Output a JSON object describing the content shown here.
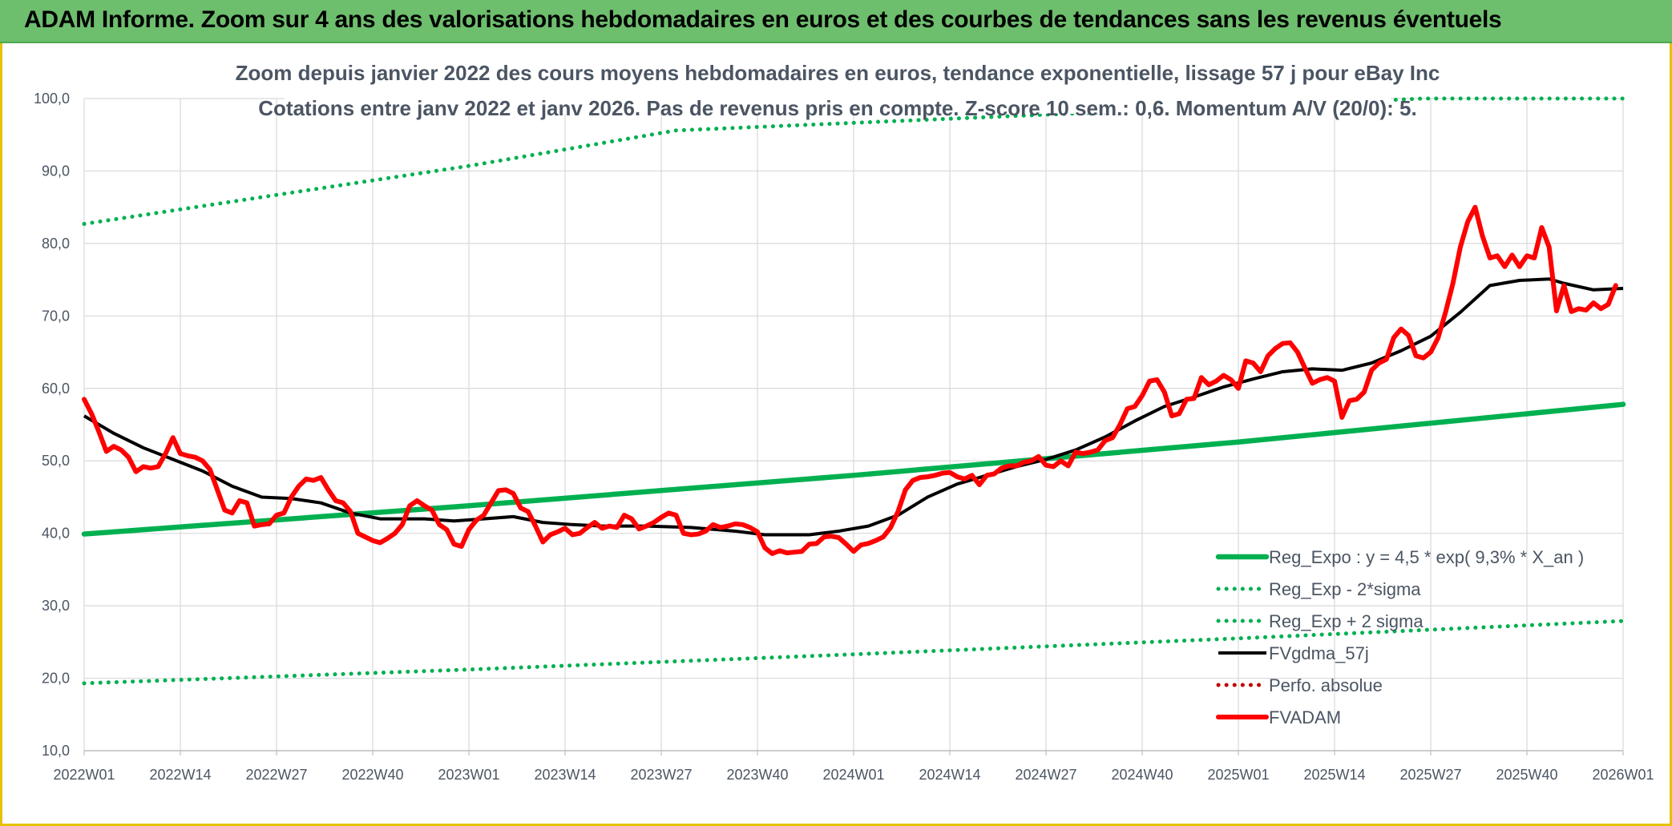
{
  "banner": {
    "title": "ADAM Informe. Zoom sur 4 ans des valorisations hebdomadaires en euros et des courbes de tendances sans les revenus éventuels"
  },
  "colors": {
    "banner_bg": "#6dbe6d",
    "reg_expo": "#00b050",
    "fvgdma": "#000000",
    "fvadam": "#ff0000",
    "perfo": "#c00000",
    "grid": "#d9d9d9",
    "text": "#4b5563"
  },
  "chart_data": {
    "type": "line",
    "title": "Zoom depuis janvier 2022 des cours moyens hebdomadaires en euros, tendance exponentielle, lissage 57 j pour eBay Inc",
    "subtitle": "Cotations entre janv 2022 et janv 2026. Pas de revenus pris en compte. Z-score 10 sem.: 0,6. Momentum A/V (20/0): 5.",
    "xlabel": "",
    "ylabel": "",
    "ylim": [
      10,
      100
    ],
    "yticks": [
      "10,0",
      "20,0",
      "30,0",
      "40,0",
      "50,0",
      "60,0",
      "70,0",
      "80,0",
      "90,0",
      "100,0"
    ],
    "xlim": [
      0,
      208
    ],
    "xticks": [
      {
        "label": "2022W01",
        "x": 0
      },
      {
        "label": "2022W14",
        "x": 13
      },
      {
        "label": "2022W27",
        "x": 26
      },
      {
        "label": "2022W40",
        "x": 39
      },
      {
        "label": "2023W01",
        "x": 52
      },
      {
        "label": "2023W14",
        "x": 65
      },
      {
        "label": "2023W27",
        "x": 78
      },
      {
        "label": "2023W40",
        "x": 91
      },
      {
        "label": "2024W01",
        "x": 104
      },
      {
        "label": "2024W14",
        "x": 117
      },
      {
        "label": "2024W27",
        "x": 130
      },
      {
        "label": "2024W40",
        "x": 143
      },
      {
        "label": "2025W01",
        "x": 156
      },
      {
        "label": "2025W14",
        "x": 169
      },
      {
        "label": "2025W27",
        "x": 182
      },
      {
        "label": "2025W40",
        "x": 195
      },
      {
        "label": "2026W01",
        "x": 208
      }
    ],
    "grid": true,
    "legend_position": "bottom-right",
    "series": [
      {
        "name": "Reg_Expo : y = 4,5 * exp( 9,3% *  X_an )",
        "style": "solid-thick",
        "color": "#00b050",
        "points": [
          [
            0,
            39.9
          ],
          [
            52,
            43.8
          ],
          [
            104,
            48.0
          ],
          [
            156,
            52.6
          ],
          [
            208,
            57.8
          ]
        ]
      },
      {
        "name": "Reg_Exp - 2*sigma",
        "style": "dotted",
        "color": "#00b050",
        "points": [
          [
            0,
            19.3
          ],
          [
            52,
            21.2
          ],
          [
            104,
            23.3
          ],
          [
            156,
            25.5
          ],
          [
            208,
            27.9
          ]
        ]
      },
      {
        "name": "Reg_Exp + 2 sigma",
        "style": "dotted",
        "color": "#00b050",
        "points": [
          [
            0,
            82.7
          ],
          [
            26,
            86.7
          ],
          [
            52,
            90.7
          ],
          [
            80,
            95.6
          ],
          [
            181,
            100
          ],
          [
            208,
            100
          ]
        ]
      },
      {
        "name": "FVgdma_57j",
        "style": "solid",
        "color": "#000000",
        "points": [
          [
            0,
            56.2
          ],
          [
            4,
            53.8
          ],
          [
            8,
            51.8
          ],
          [
            12,
            50.2
          ],
          [
            16,
            48.6
          ],
          [
            20,
            46.5
          ],
          [
            24,
            45.0
          ],
          [
            28,
            44.8
          ],
          [
            32,
            44.2
          ],
          [
            36,
            42.8
          ],
          [
            40,
            42.0
          ],
          [
            46,
            42.0
          ],
          [
            50,
            41.7
          ],
          [
            54,
            42.0
          ],
          [
            58,
            42.3
          ],
          [
            62,
            41.5
          ],
          [
            66,
            41.2
          ],
          [
            70,
            41.0
          ],
          [
            76,
            41.0
          ],
          [
            82,
            40.8
          ],
          [
            88,
            40.3
          ],
          [
            92,
            39.8
          ],
          [
            98,
            39.8
          ],
          [
            102,
            40.3
          ],
          [
            106,
            41.0
          ],
          [
            110,
            42.5
          ],
          [
            114,
            45.0
          ],
          [
            118,
            46.8
          ],
          [
            122,
            48.0
          ],
          [
            126,
            49.2
          ],
          [
            130,
            50.2
          ],
          [
            134,
            51.5
          ],
          [
            138,
            53.3
          ],
          [
            142,
            55.5
          ],
          [
            146,
            57.5
          ],
          [
            150,
            58.8
          ],
          [
            154,
            60.2
          ],
          [
            158,
            61.3
          ],
          [
            162,
            62.3
          ],
          [
            166,
            62.7
          ],
          [
            170,
            62.5
          ],
          [
            174,
            63.5
          ],
          [
            178,
            65.2
          ],
          [
            182,
            67.2
          ],
          [
            186,
            70.5
          ],
          [
            190,
            74.2
          ],
          [
            194,
            74.9
          ],
          [
            198,
            75.1
          ],
          [
            200,
            74.5
          ],
          [
            204,
            73.6
          ],
          [
            208,
            73.8
          ]
        ]
      },
      {
        "name": "Perfo. absolue",
        "style": "dotted",
        "color": "#c00000",
        "points": []
      },
      {
        "name": "FVADAM",
        "style": "solid-thick",
        "color": "#ff0000",
        "points": [
          [
            0,
            58.5
          ],
          [
            1,
            56.5
          ],
          [
            2,
            54.0
          ],
          [
            3,
            51.3
          ],
          [
            4,
            52.0
          ],
          [
            5,
            51.5
          ],
          [
            6,
            50.5
          ],
          [
            7,
            48.5
          ],
          [
            8,
            49.2
          ],
          [
            9,
            49.0
          ],
          [
            10,
            49.2
          ],
          [
            11,
            51.0
          ],
          [
            12,
            53.2
          ],
          [
            13,
            51.0
          ],
          [
            14,
            50.7
          ],
          [
            15,
            50.5
          ],
          [
            16,
            50.0
          ],
          [
            17,
            48.8
          ],
          [
            18,
            46.0
          ],
          [
            19,
            43.2
          ],
          [
            20,
            42.8
          ],
          [
            21,
            44.5
          ],
          [
            22,
            44.2
          ],
          [
            23,
            41.0
          ],
          [
            24,
            41.2
          ],
          [
            25,
            41.3
          ],
          [
            26,
            42.5
          ],
          [
            27,
            42.8
          ],
          [
            28,
            45.0
          ],
          [
            29,
            46.5
          ],
          [
            30,
            47.5
          ],
          [
            31,
            47.3
          ],
          [
            32,
            47.7
          ],
          [
            33,
            46.0
          ],
          [
            34,
            44.5
          ],
          [
            35,
            44.2
          ],
          [
            36,
            43.0
          ],
          [
            37,
            40.0
          ],
          [
            38,
            39.5
          ],
          [
            39,
            39.0
          ],
          [
            40,
            38.7
          ],
          [
            41,
            39.3
          ],
          [
            42,
            40.0
          ],
          [
            43,
            41.2
          ],
          [
            44,
            43.8
          ],
          [
            45,
            44.5
          ],
          [
            46,
            43.8
          ],
          [
            47,
            43.2
          ],
          [
            48,
            41.2
          ],
          [
            49,
            40.5
          ],
          [
            50,
            38.5
          ],
          [
            51,
            38.2
          ],
          [
            52,
            40.5
          ],
          [
            53,
            41.8
          ],
          [
            54,
            42.5
          ],
          [
            55,
            44.2
          ],
          [
            56,
            45.9
          ],
          [
            57,
            46.0
          ],
          [
            58,
            45.5
          ],
          [
            59,
            43.5
          ],
          [
            60,
            43.0
          ],
          [
            61,
            41.0
          ],
          [
            62,
            38.8
          ],
          [
            63,
            39.8
          ],
          [
            64,
            40.2
          ],
          [
            65,
            40.7
          ],
          [
            66,
            39.8
          ],
          [
            67,
            40.0
          ],
          [
            68,
            40.8
          ],
          [
            69,
            41.5
          ],
          [
            70,
            40.7
          ],
          [
            71,
            41.0
          ],
          [
            72,
            40.8
          ],
          [
            73,
            42.5
          ],
          [
            74,
            42.0
          ],
          [
            75,
            40.6
          ],
          [
            76,
            41.0
          ],
          [
            77,
            41.5
          ],
          [
            78,
            42.2
          ],
          [
            79,
            42.8
          ],
          [
            80,
            42.5
          ],
          [
            81,
            40.0
          ],
          [
            82,
            39.8
          ],
          [
            83,
            39.9
          ],
          [
            84,
            40.3
          ],
          [
            85,
            41.2
          ],
          [
            86,
            40.8
          ],
          [
            87,
            41.0
          ],
          [
            88,
            41.3
          ],
          [
            89,
            41.2
          ],
          [
            90,
            40.8
          ],
          [
            91,
            40.2
          ],
          [
            92,
            38.0
          ],
          [
            93,
            37.2
          ],
          [
            94,
            37.6
          ],
          [
            95,
            37.3
          ],
          [
            96,
            37.4
          ],
          [
            97,
            37.5
          ],
          [
            98,
            38.5
          ],
          [
            99,
            38.6
          ],
          [
            100,
            39.5
          ],
          [
            101,
            39.6
          ],
          [
            102,
            39.4
          ],
          [
            103,
            38.5
          ],
          [
            104,
            37.5
          ],
          [
            105,
            38.4
          ],
          [
            106,
            38.6
          ],
          [
            107,
            39.0
          ],
          [
            108,
            39.5
          ],
          [
            109,
            40.8
          ],
          [
            110,
            43.0
          ],
          [
            111,
            46.0
          ],
          [
            112,
            47.3
          ],
          [
            113,
            47.7
          ],
          [
            114,
            47.8
          ],
          [
            115,
            48.0
          ],
          [
            116,
            48.3
          ],
          [
            117,
            48.4
          ],
          [
            118,
            47.8
          ],
          [
            119,
            47.5
          ],
          [
            120,
            48.0
          ],
          [
            121,
            46.7
          ],
          [
            122,
            48.0
          ],
          [
            123,
            48.2
          ],
          [
            124,
            49.0
          ],
          [
            125,
            49.3
          ],
          [
            126,
            49.3
          ],
          [
            127,
            49.8
          ],
          [
            128,
            50.0
          ],
          [
            129,
            50.6
          ],
          [
            130,
            49.4
          ],
          [
            131,
            49.2
          ],
          [
            132,
            50.0
          ],
          [
            133,
            49.3
          ],
          [
            134,
            51.2
          ],
          [
            135,
            51.0
          ],
          [
            136,
            51.2
          ],
          [
            137,
            51.5
          ],
          [
            138,
            52.8
          ],
          [
            139,
            53.2
          ],
          [
            140,
            55.0
          ],
          [
            141,
            57.2
          ],
          [
            142,
            57.5
          ],
          [
            143,
            59.0
          ],
          [
            144,
            61.0
          ],
          [
            145,
            61.2
          ],
          [
            146,
            59.5
          ],
          [
            147,
            56.2
          ],
          [
            148,
            56.5
          ],
          [
            149,
            58.5
          ],
          [
            150,
            58.6
          ],
          [
            151,
            61.5
          ],
          [
            152,
            60.5
          ],
          [
            153,
            61.0
          ],
          [
            154,
            61.8
          ],
          [
            155,
            61.2
          ],
          [
            156,
            60.0
          ],
          [
            157,
            63.8
          ],
          [
            158,
            63.5
          ],
          [
            159,
            62.3
          ],
          [
            160,
            64.5
          ],
          [
            161,
            65.5
          ],
          [
            162,
            66.2
          ],
          [
            163,
            66.3
          ],
          [
            164,
            65.0
          ],
          [
            165,
            62.8
          ],
          [
            166,
            60.7
          ],
          [
            167,
            61.2
          ],
          [
            168,
            61.5
          ],
          [
            169,
            61.0
          ],
          [
            170,
            56.0
          ],
          [
            171,
            58.3
          ],
          [
            172,
            58.5
          ],
          [
            173,
            59.5
          ],
          [
            174,
            62.5
          ],
          [
            175,
            63.5
          ],
          [
            176,
            64.0
          ],
          [
            177,
            67.0
          ],
          [
            178,
            68.2
          ],
          [
            179,
            67.3
          ],
          [
            180,
            64.5
          ],
          [
            181,
            64.2
          ],
          [
            182,
            65.0
          ],
          [
            183,
            67.0
          ],
          [
            184,
            70.5
          ],
          [
            185,
            74.5
          ],
          [
            186,
            79.5
          ],
          [
            187,
            83.0
          ],
          [
            188,
            85.0
          ],
          [
            189,
            81.0
          ],
          [
            190,
            78.0
          ],
          [
            191,
            78.3
          ],
          [
            192,
            76.8
          ],
          [
            193,
            78.4
          ],
          [
            194,
            76.8
          ],
          [
            195,
            78.3
          ],
          [
            196,
            78.0
          ],
          [
            197,
            82.2
          ],
          [
            198,
            79.5
          ],
          [
            199,
            70.7
          ],
          [
            200,
            74.2
          ],
          [
            201,
            70.6
          ],
          [
            202,
            71.0
          ],
          [
            203,
            70.8
          ],
          [
            204,
            71.8
          ],
          [
            205,
            71.0
          ],
          [
            206,
            71.6
          ],
          [
            207,
            74.2
          ]
        ]
      }
    ]
  }
}
